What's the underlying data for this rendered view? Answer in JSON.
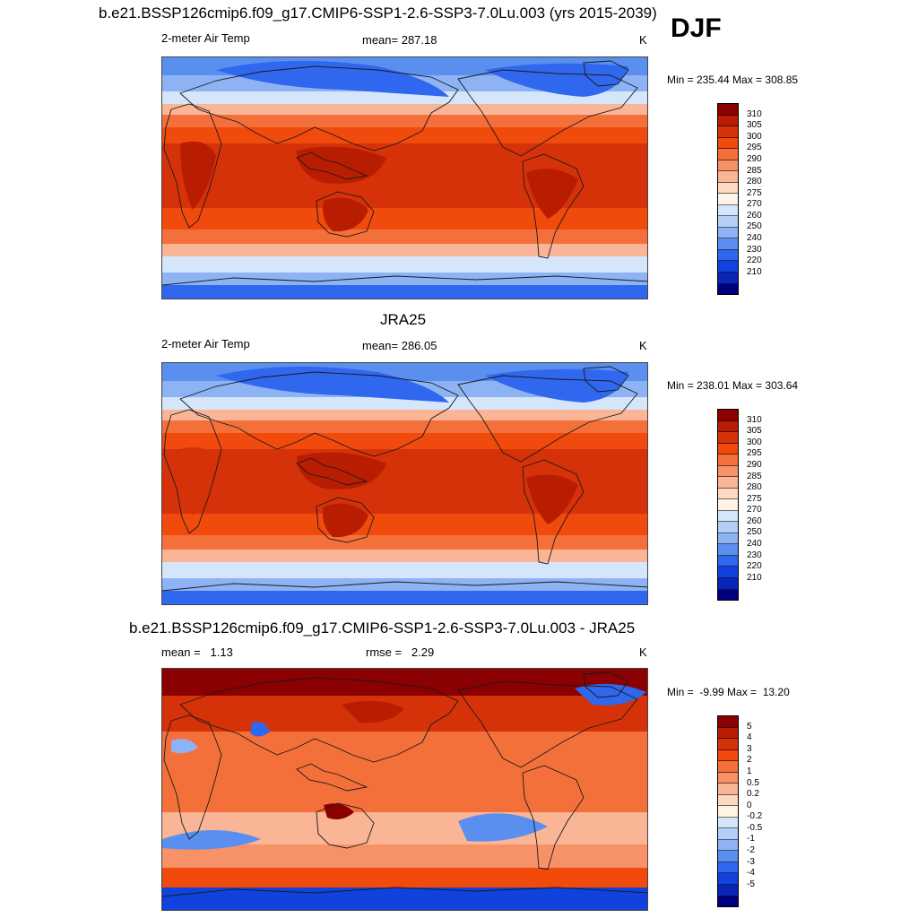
{
  "figure": {
    "season": "DJF",
    "title_top": "b.e21.BSSP126cmip6.f09_g17.CMIP6-SSP1-2.6-SSP3-7.0Lu.003 (yrs 2015-2039)",
    "title_mid": "JRA25",
    "title_bottom": "b.e21.BSSP126cmip6.f09_g17.CMIP6-SSP1-2.6-SSP3-7.0Lu.003 - JRA25"
  },
  "panels": [
    {
      "left_label": "2-meter Air Temp",
      "center_label": "mean= 287.18",
      "unit": "K",
      "minmax": "Min = 235.44 Max = 308.85",
      "kind": "model"
    },
    {
      "left_label": "2-meter Air Temp",
      "center_label": "mean= 286.05",
      "unit": "K",
      "minmax": "Min = 238.01 Max = 303.64",
      "kind": "obs"
    },
    {
      "left_label": "mean =   1.13",
      "center_label": "rmse =   2.29",
      "unit": "K",
      "minmax": "Min =  -9.99 Max =  13.20",
      "kind": "diff"
    }
  ],
  "colorbars": {
    "temperature": {
      "labels": [
        "310",
        "305",
        "300",
        "295",
        "290",
        "285",
        "280",
        "275",
        "270",
        "260",
        "250",
        "240",
        "230",
        "220",
        "210"
      ],
      "colors": [
        "#8b0000",
        "#b81d02",
        "#d63209",
        "#f04a0d",
        "#f4703a",
        "#f79268",
        "#fab596",
        "#fdd9c2",
        "#fff3e6",
        "#d6e6fa",
        "#b3cff7",
        "#8db3f4",
        "#5a8ff0",
        "#2f67ee",
        "#1242dd",
        "#0a24b8",
        "#00007f"
      ]
    },
    "difference": {
      "labels": [
        "5",
        "4",
        "3",
        "2",
        "1",
        "0.5",
        "0.2",
        "0",
        "-0.2",
        "-0.5",
        "-1",
        "-2",
        "-3",
        "-4",
        "-5"
      ],
      "colors": [
        "#8b0000",
        "#b81d02",
        "#d63209",
        "#f04a0d",
        "#f4703a",
        "#f79268",
        "#fab596",
        "#fdd9c2",
        "#fff3e6",
        "#d6e6fa",
        "#b3cff7",
        "#8db3f4",
        "#5a8ff0",
        "#2f67ee",
        "#1242dd",
        "#0a24b8",
        "#00007f"
      ]
    }
  },
  "map_palette": {
    "arctic": "#5a8ff0",
    "cold": "#8db3f4",
    "cool": "#d6e6fa",
    "mild": "#fab596",
    "warm": "#f4703a",
    "hot": "#f04a0d",
    "tropics": "#d63209",
    "deep": "#b81d02",
    "polar": "#2f67ee",
    "coast": "#1a1a1a"
  }
}
